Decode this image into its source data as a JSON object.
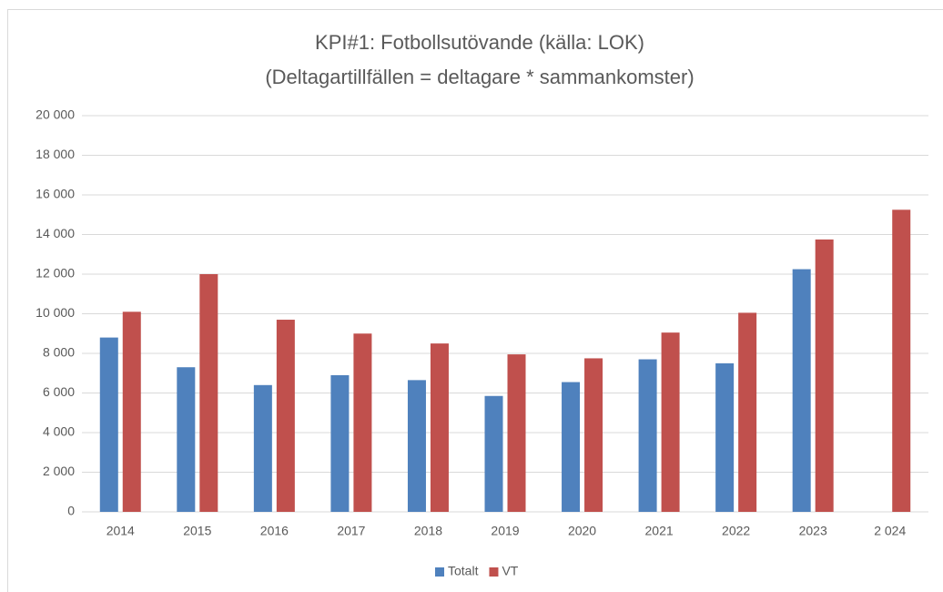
{
  "chart_data": {
    "type": "bar",
    "title": "KPI#1: Fotbollsutövande (källa: LOK)",
    "subtitle": "(Deltagartillfällen = deltagare * sammankomster)",
    "categories": [
      "2014",
      "2015",
      "2016",
      "2017",
      "2018",
      "2019",
      "2020",
      "2021",
      "2022",
      "2023",
      "2 024"
    ],
    "series": [
      {
        "name": "Totalt",
        "color": "#4f81bd",
        "values": [
          8800,
          7300,
          6400,
          6900,
          6650,
          5850,
          6550,
          7700,
          7500,
          12250,
          null
        ]
      },
      {
        "name": "VT",
        "color": "#c0504d",
        "values": [
          10100,
          12000,
          9700,
          9000,
          8500,
          7950,
          7750,
          9050,
          10050,
          13750,
          15250
        ]
      }
    ],
    "ylim": [
      0,
      20000
    ],
    "yticks": [
      0,
      {
        "value": 2000,
        "label": "2 000"
      },
      {
        "value": 4000,
        "label": "4 000"
      },
      {
        "value": 6000,
        "label": "6 000"
      },
      {
        "value": 8000,
        "label": "8 000"
      },
      {
        "value": 10000,
        "label": "10 000"
      },
      {
        "value": 12000,
        "label": "12 000"
      },
      {
        "value": 14000,
        "label": "14 000"
      },
      {
        "value": 16000,
        "label": "16 000"
      },
      {
        "value": 18000,
        "label": "18 000"
      },
      {
        "value": 20000,
        "label": "20 000"
      }
    ],
    "grid": true,
    "legend": "bottom"
  }
}
